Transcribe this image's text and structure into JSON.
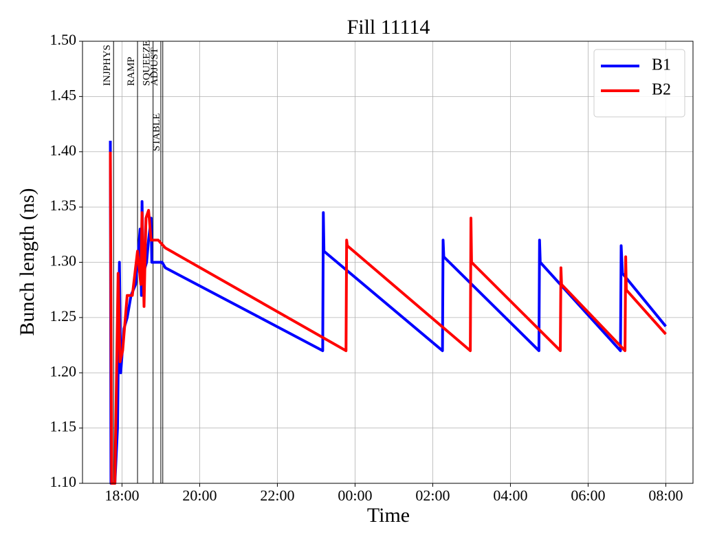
{
  "chart_data": {
    "type": "line",
    "title": "Fill 11114",
    "x_label": "Time",
    "y_label": "Bunch length (ns)",
    "xlim": [
      "16:59",
      "08:42"
    ],
    "xticks": [
      "18:00",
      "20:00",
      "22:00",
      "00:00",
      "02:00",
      "04:00",
      "06:00",
      "08:00"
    ],
    "ylim": [
      1.1,
      1.5
    ],
    "yticks": [
      {
        "value": 1.1,
        "label": "1.10"
      },
      {
        "value": 1.15,
        "label": "1.15"
      },
      {
        "value": 1.2,
        "label": "1.20"
      },
      {
        "value": 1.25,
        "label": "1.25"
      },
      {
        "value": 1.3,
        "label": "1.30"
      },
      {
        "value": 1.35,
        "label": "1.35"
      },
      {
        "value": 1.4,
        "label": "1.40"
      },
      {
        "value": 1.45,
        "label": "1.45"
      },
      {
        "value": 1.5,
        "label": "1.50"
      }
    ],
    "grid": true,
    "legend": "upper right",
    "phases": [
      {
        "label": "INJPHYS",
        "time": "17:47"
      },
      {
        "label": "RAMP",
        "time": "18:24"
      },
      {
        "label": "SQUEEZE",
        "time": "18:48"
      },
      {
        "label": "ADJUST",
        "time": "19:00"
      },
      {
        "label": "STABLE",
        "time": "19:03"
      }
    ],
    "series": [
      {
        "name": "B1",
        "color": "#0000ff",
        "x": [
          "17:42",
          "17:43",
          "17:49",
          "17:53",
          "17:56",
          "17:58",
          "18:03",
          "18:08",
          "18:14",
          "18:21",
          "18:28",
          "18:30",
          "18:31",
          "18:33",
          "18:38",
          "18:41",
          "18:45",
          "18:46",
          "19:02",
          "19:07",
          "23:10",
          "23:11",
          "23:12",
          "02:15",
          "02:16",
          "02:17",
          "04:44",
          "04:45",
          "04:46",
          "06:50",
          "06:51",
          "06:53",
          "08:00"
        ],
        "values": [
          1.41,
          1.1,
          1.1,
          1.15,
          1.3,
          1.2,
          1.24,
          1.25,
          1.27,
          1.28,
          1.33,
          1.27,
          1.355,
          1.29,
          1.3,
          1.32,
          1.34,
          1.3,
          1.3,
          1.295,
          1.22,
          1.345,
          1.31,
          1.22,
          1.32,
          1.305,
          1.22,
          1.32,
          1.3,
          1.22,
          1.315,
          1.29,
          1.242
        ]
      },
      {
        "name": "B2",
        "color": "#ff0000",
        "x": [
          "17:42",
          "17:44",
          "17:49",
          "17:54",
          "17:57",
          "18:01",
          "18:08",
          "18:16",
          "18:24",
          "18:29",
          "18:31",
          "18:34",
          "18:37",
          "18:41",
          "18:45",
          "18:56",
          "19:07",
          "23:46",
          "23:47",
          "23:48",
          "02:58",
          "02:59",
          "03:00",
          "05:17",
          "05:18",
          "05:19",
          "06:57",
          "06:58",
          "06:59",
          "08:00"
        ],
        "values": [
          1.4,
          1.1,
          1.1,
          1.29,
          1.21,
          1.22,
          1.27,
          1.27,
          1.31,
          1.28,
          1.345,
          1.26,
          1.34,
          1.347,
          1.32,
          1.32,
          1.313,
          1.22,
          1.32,
          1.315,
          1.22,
          1.34,
          1.3,
          1.22,
          1.295,
          1.28,
          1.22,
          1.305,
          1.275,
          1.235
        ]
      }
    ]
  }
}
